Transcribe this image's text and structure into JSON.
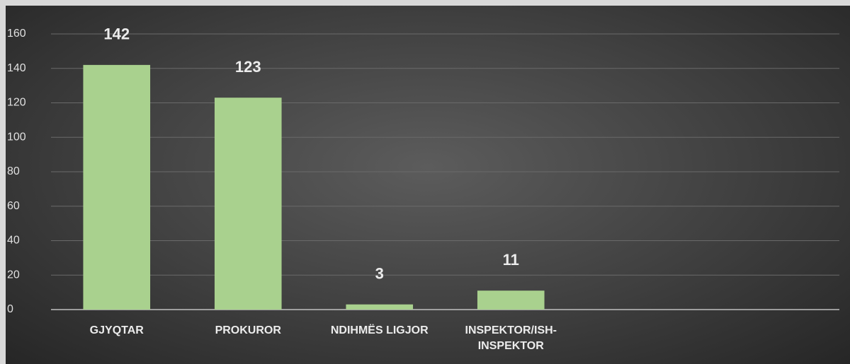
{
  "chart_data": {
    "type": "bar",
    "categories": [
      "GJYQTAR",
      "PROKUROR",
      "NDIHMËS LIGJOR",
      "INSPEKTOR/ISH-INSPEKTOR",
      null,
      null
    ],
    "values": [
      142,
      123,
      3,
      11,
      null,
      null
    ],
    "color": "#a9d18e",
    "ylim": [
      0,
      160
    ],
    "yticks": [
      0,
      20,
      40,
      60,
      80,
      100,
      120,
      140,
      160
    ],
    "grid": true
  }
}
